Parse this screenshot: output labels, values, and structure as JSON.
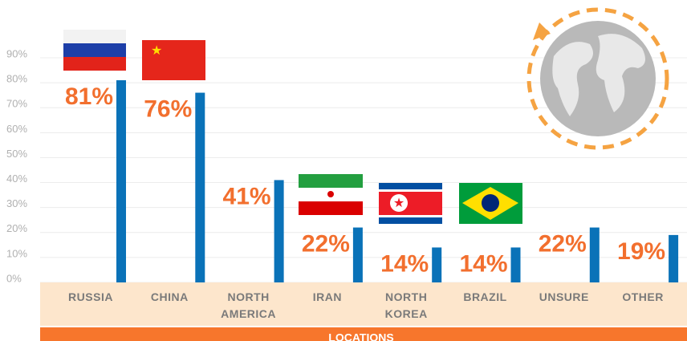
{
  "chart_data": {
    "type": "bar",
    "x_label": "LOCATIONS",
    "categories": [
      "RUSSIA",
      "CHINA",
      "NORTH AMERICA",
      "IRAN",
      "NORTH KOREA",
      "BRAZIL",
      "UNSURE",
      "OTHER"
    ],
    "values": [
      81,
      76,
      41,
      22,
      14,
      14,
      22,
      19
    ],
    "value_labels": [
      "81%",
      "76%",
      "41%",
      "22%",
      "14%",
      "14%",
      "22%",
      "19%"
    ],
    "color": "#0a72b8",
    "label_color": "#f26f2e",
    "ylim": [
      0,
      90
    ],
    "yticks": [
      {
        "value": 0,
        "label": "0%"
      },
      {
        "value": 10,
        "label": "10%"
      },
      {
        "value": 20,
        "label": "20%"
      },
      {
        "value": 30,
        "label": "30%"
      },
      {
        "value": 40,
        "label": "40%"
      },
      {
        "value": 50,
        "label": "50%"
      },
      {
        "value": 60,
        "label": "60%"
      },
      {
        "value": 70,
        "label": "70%"
      },
      {
        "value": 80,
        "label": "80%"
      },
      {
        "value": 90,
        "label": "90%"
      }
    ],
    "grid": true
  }
}
